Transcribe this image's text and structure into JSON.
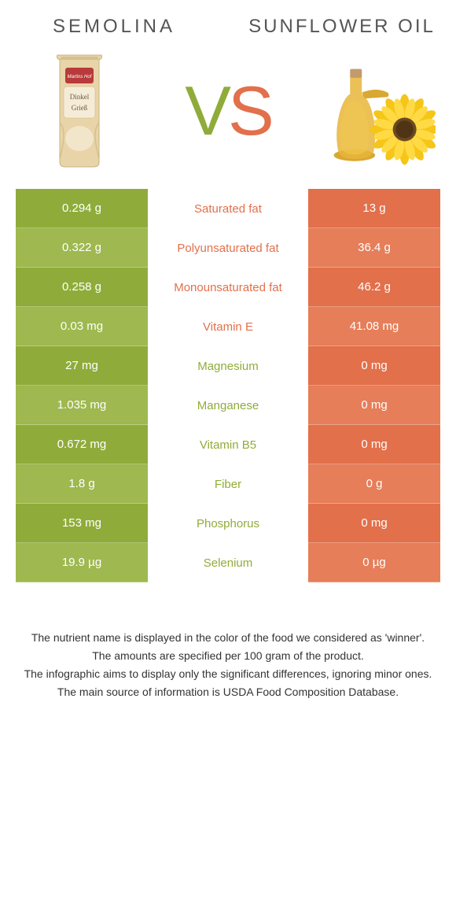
{
  "colors": {
    "left": "#8fac3a",
    "right": "#e2704b",
    "left_alt": "#9fb84f",
    "right_alt": "#e67e59",
    "bag_body": "#e8d4a8",
    "bag_label": "#b83a3a",
    "bag_text_bg": "#f5ecd8",
    "bag_brown": "#8a7346",
    "oil_bottle": "#e8b53a",
    "oil_cork": "#c49a6c",
    "sunflower_petal": "#f5c518",
    "sunflower_center": "#6b4a1f",
    "footer_text": "#333333"
  },
  "titles": {
    "left": "SEMOLINA",
    "right": "SUNFLOWER OIL",
    "vs": "VS"
  },
  "bag_label_top": "Martins Hof",
  "bag_label_main": "Dinkel Grieß",
  "rows": [
    {
      "left_val": "0.294 g",
      "label": "Saturated fat",
      "right_val": "13 g",
      "winner": "right"
    },
    {
      "left_val": "0.322 g",
      "label": "Polyunsaturated fat",
      "right_val": "36.4 g",
      "winner": "right"
    },
    {
      "left_val": "0.258 g",
      "label": "Monounsaturated fat",
      "right_val": "46.2 g",
      "winner": "right"
    },
    {
      "left_val": "0.03 mg",
      "label": "Vitamin E",
      "right_val": "41.08 mg",
      "winner": "right"
    },
    {
      "left_val": "27 mg",
      "label": "Magnesium",
      "right_val": "0 mg",
      "winner": "left"
    },
    {
      "left_val": "1.035 mg",
      "label": "Manganese",
      "right_val": "0 mg",
      "winner": "left"
    },
    {
      "left_val": "0.672 mg",
      "label": "Vitamin B5",
      "right_val": "0 mg",
      "winner": "left"
    },
    {
      "left_val": "1.8 g",
      "label": "Fiber",
      "right_val": "0 g",
      "winner": "left"
    },
    {
      "left_val": "153 mg",
      "label": "Phosphorus",
      "right_val": "0 mg",
      "winner": "left"
    },
    {
      "left_val": "19.9 µg",
      "label": "Selenium",
      "right_val": "0 µg",
      "winner": "left"
    }
  ],
  "footer_lines": [
    "The nutrient name is displayed in the color of the food we considered as 'winner'.",
    "The amounts are specified per 100 gram of the product.",
    "The infographic aims to display only the significant differences, ignoring minor ones.",
    "The main source of information is USDA Food Composition Database."
  ]
}
